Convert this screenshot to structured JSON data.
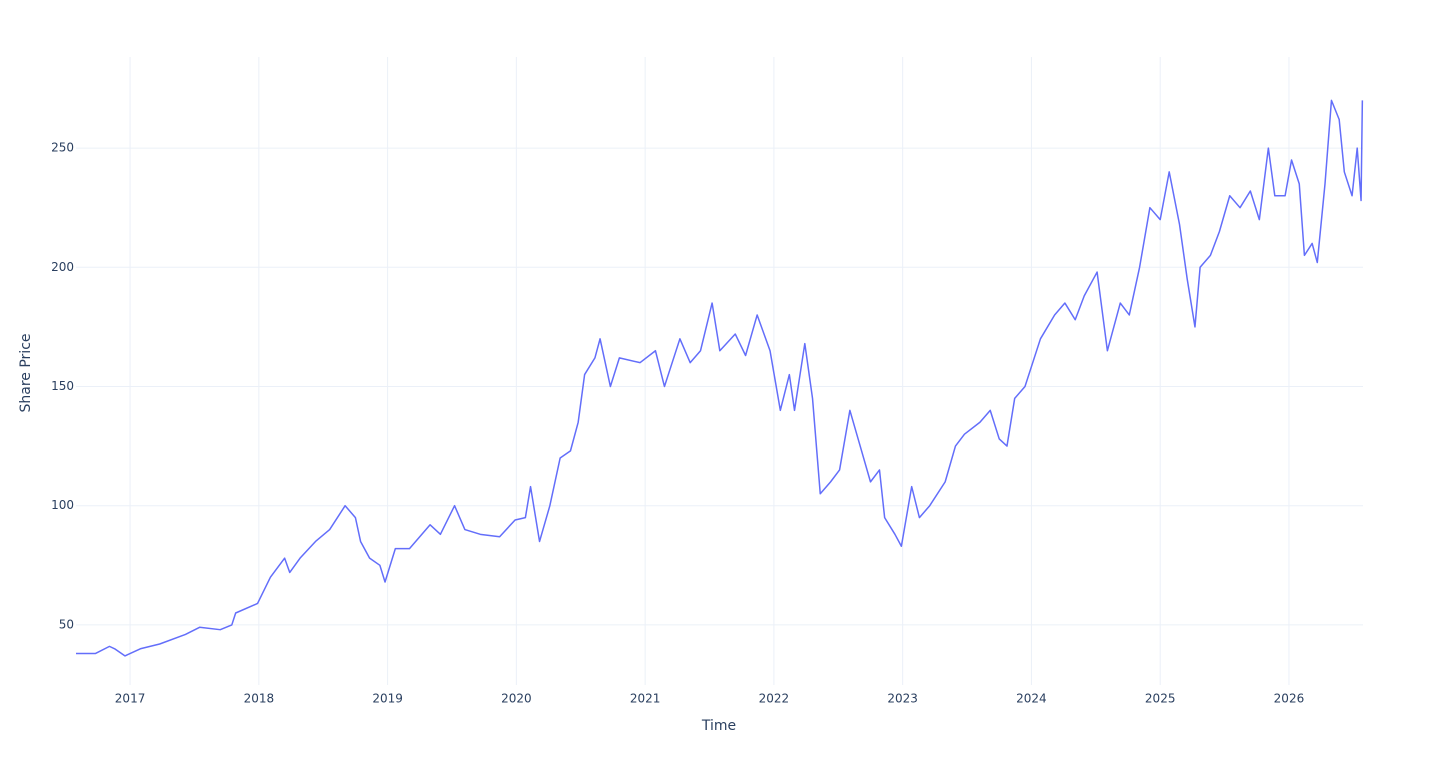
{
  "chart_data": {
    "type": "line",
    "x_label": "Time",
    "y_label": "Share Price",
    "x": [
      2016.58,
      2016.73,
      2016.84,
      2016.88,
      2016.96,
      2017.08,
      2017.23,
      2017.43,
      2017.54,
      2017.7,
      2017.79,
      2017.82,
      2017.99,
      2018.09,
      2018.2,
      2018.24,
      2018.32,
      2018.44,
      2018.55,
      2018.67,
      2018.75,
      2018.79,
      2018.86,
      2018.94,
      2018.98,
      2019.06,
      2019.17,
      2019.33,
      2019.41,
      2019.52,
      2019.6,
      2019.72,
      2019.87,
      2019.99,
      2020.07,
      2020.11,
      2020.18,
      2020.26,
      2020.34,
      2020.42,
      2020.48,
      2020.53,
      2020.61,
      2020.65,
      2020.73,
      2020.8,
      2020.96,
      2021.08,
      2021.15,
      2021.27,
      2021.35,
      2021.43,
      2021.52,
      2021.58,
      2021.7,
      2021.78,
      2021.87,
      2021.97,
      2022.05,
      2022.12,
      2022.16,
      2022.24,
      2022.3,
      2022.36,
      2022.44,
      2022.51,
      2022.59,
      2022.67,
      2022.75,
      2022.82,
      2022.86,
      2022.94,
      2022.99,
      2023.07,
      2023.13,
      2023.21,
      2023.33,
      2023.41,
      2023.48,
      2023.6,
      2023.68,
      2023.75,
      2023.81,
      2023.87,
      2023.95,
      2024.07,
      2024.18,
      2024.26,
      2024.34,
      2024.41,
      2024.51,
      2024.59,
      2024.69,
      2024.76,
      2024.84,
      2024.92,
      2025.0,
      2025.07,
      2025.15,
      2025.21,
      2025.27,
      2025.31,
      2025.39,
      2025.46,
      2025.54,
      2025.62,
      2025.7,
      2025.77,
      2025.84,
      2025.89,
      2025.97,
      2026.02,
      2026.08,
      2026.12,
      2026.18,
      2026.22,
      2026.28,
      2026.33,
      2026.39,
      2026.43,
      2026.49,
      2026.53,
      2026.56,
      2026.57
    ],
    "series": [
      {
        "name": "Share Price",
        "color": "#636efa",
        "values": [
          38,
          38,
          41,
          40,
          37,
          40,
          42,
          46,
          49,
          48,
          50,
          55,
          59,
          70,
          78,
          72,
          78,
          85,
          90,
          100,
          95,
          85,
          78,
          75,
          68,
          82,
          82,
          92,
          88,
          100,
          90,
          88,
          87,
          94,
          95,
          108,
          85,
          100,
          120,
          123,
          135,
          155,
          162,
          170,
          150,
          162,
          160,
          165,
          150,
          170,
          160,
          165,
          185,
          165,
          172,
          163,
          180,
          165,
          140,
          155,
          140,
          168,
          145,
          105,
          110,
          115,
          140,
          125,
          110,
          115,
          95,
          88,
          83,
          108,
          95,
          100,
          110,
          125,
          130,
          135,
          140,
          128,
          125,
          145,
          150,
          170,
          180,
          185,
          178,
          188,
          198,
          165,
          185,
          180,
          200,
          225,
          220,
          240,
          218,
          195,
          175,
          200,
          205,
          215,
          230,
          225,
          232,
          220,
          250,
          230,
          230,
          245,
          235,
          205,
          210,
          202,
          235,
          270,
          262,
          240,
          230,
          250,
          228,
          270
        ]
      }
    ],
    "xlim": [
      2016.58,
      2026.575
    ],
    "xticks": [
      2017,
      2018,
      2019,
      2020,
      2021,
      2022,
      2023,
      2024,
      2025,
      2026
    ],
    "ylim": [
      24.8,
      288.2
    ],
    "yticks": [
      50,
      100,
      150,
      200,
      250
    ],
    "grid": true
  }
}
